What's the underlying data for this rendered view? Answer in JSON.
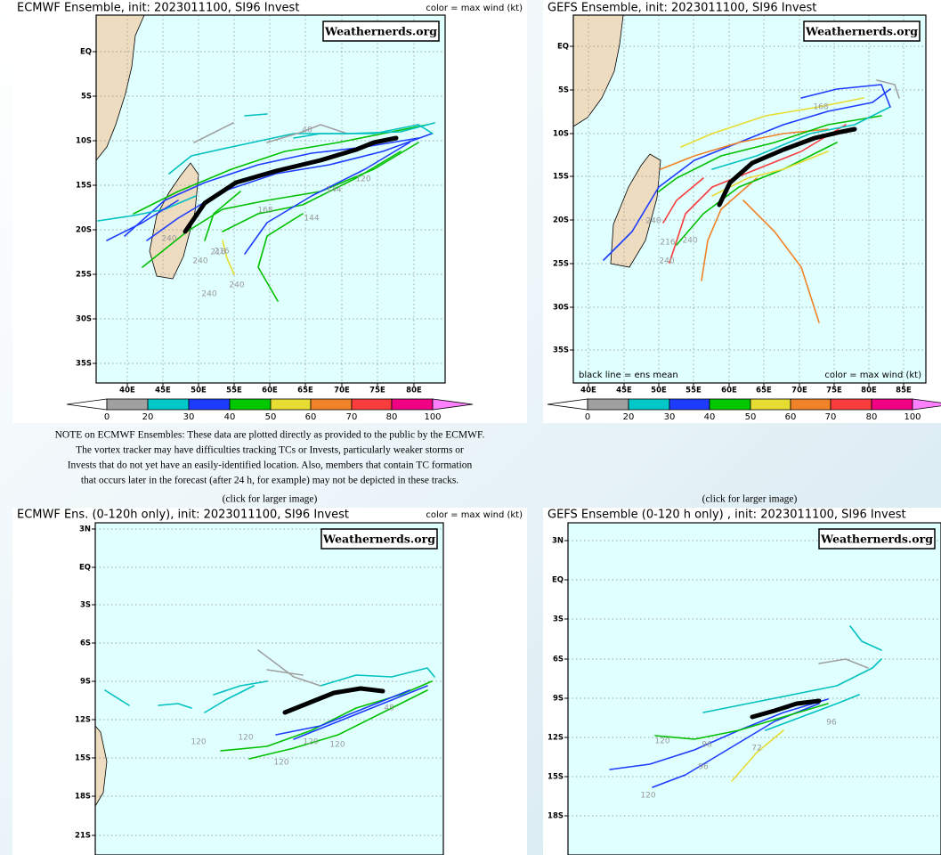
{
  "panels": [
    {
      "title": "ECMWF Ensemble, init: 2023011100, SI96 Invest",
      "color_note": "color = max wind (kt)",
      "watermark": "Weathernerds.org",
      "lat_labels": [
        "EQ",
        "5S",
        "10S",
        "15S",
        "20S",
        "25S",
        "30S",
        "35S"
      ],
      "lon_labels": [
        "40E",
        "45E",
        "50E",
        "55E",
        "60E",
        "65E",
        "70E",
        "75E",
        "80E"
      ],
      "colorbar_labels": [
        "0",
        "20",
        "30",
        "40",
        "50",
        "60",
        "70",
        "80",
        "100"
      ],
      "track_labels": [
        "240",
        "240",
        "240",
        "216",
        "144",
        "144",
        "120",
        "168",
        "216",
        "240",
        "48"
      ]
    },
    {
      "title": "GEFS Ensemble, init: 2023011100, SI96 Invest",
      "color_note": "color = max wind (kt)",
      "mean_note": "black line = ens mean",
      "watermark": "Weathernerds.org",
      "lat_labels": [
        "EQ",
        "5S",
        "10S",
        "15S",
        "20S",
        "25S",
        "30S",
        "35S"
      ],
      "lon_labels": [
        "40E",
        "45E",
        "50E",
        "55E",
        "60E",
        "65E",
        "70E",
        "75E",
        "80E",
        "85E"
      ],
      "colorbar_labels": [
        "0",
        "20",
        "30",
        "40",
        "50",
        "60",
        "70",
        "80",
        "100"
      ],
      "track_labels": [
        "240",
        "240",
        "216",
        "168",
        "240"
      ]
    },
    {
      "title": "ECMWF Ens. (0-120h only), init: 2023011100, SI96 Invest",
      "color_note": "color = max wind (kt)",
      "watermark": "Weathernerds.org",
      "lat_labels": [
        "3N",
        "EQ",
        "3S",
        "6S",
        "9S",
        "12S",
        "15S",
        "18S",
        "21S"
      ],
      "track_labels": [
        "120",
        "120",
        "120",
        "120",
        "120",
        "48"
      ]
    },
    {
      "title": "GEFS Ensemble (0-120 h only) , init: 2023011100, SI96 Invest",
      "watermark": "Weathernerds.org",
      "lat_labels": [
        "3N",
        "EQ",
        "3S",
        "6S",
        "9S",
        "12S",
        "15S",
        "18S"
      ],
      "track_labels": [
        "120",
        "120",
        "96",
        "96",
        "72",
        "96"
      ]
    }
  ],
  "note": [
    "NOTE on ECMWF Ensembles: These data are plotted directly as provided to the public by the ECMWF.",
    "The vortex tracker may have difficulties tracking TCs or Invests, particularly weaker storms or",
    "Invests that do not yet have an easily-identified location. Also, members that contain TC formation",
    "that occurs later in the forecast (after 24 h, for example) may not be depicted in these tracks."
  ],
  "click_labels": [
    "(click for larger image)",
    "(click for larger image)"
  ]
}
